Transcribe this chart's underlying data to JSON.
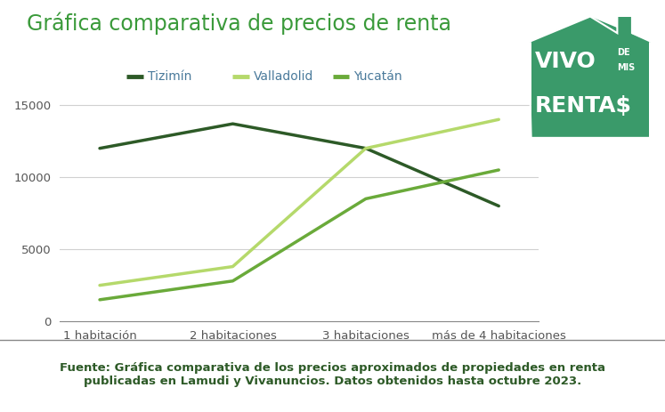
{
  "title": "Gráfica comparativa de precios de renta",
  "title_color": "#3a9a3a",
  "title_fontsize": 17,
  "categories": [
    "1 habitación",
    "2 habitaciones",
    "3 habitaciones",
    "más de 4 habitaciones"
  ],
  "series": [
    {
      "name": "Tizimín",
      "color": "#2d5a27",
      "values": [
        12000,
        13700,
        12000,
        8000
      ],
      "linewidth": 2.5
    },
    {
      "name": "Valladolid",
      "color": "#b5d96b",
      "values": [
        2500,
        3800,
        12000,
        14000
      ],
      "linewidth": 2.5
    },
    {
      "name": "Yucatán",
      "color": "#6aaa3a",
      "values": [
        1500,
        2800,
        8500,
        10500
      ],
      "linewidth": 2.5
    }
  ],
  "ylim": [
    0,
    16000
  ],
  "yticks": [
    0,
    5000,
    10000,
    15000
  ],
  "background_color": "#ffffff",
  "plot_background_color": "#ffffff",
  "grid_color": "#d0d0d0",
  "footer_text": "Fuente: Gráfica comparativa de los precios aproximados de propiedades en renta\npublicadas en Lamudi y Vivanuncios. Datos obtenidos hasta octubre 2023.",
  "footer_color": "#2d5a27",
  "footer_fontsize": 9.5,
  "legend_fontsize": 10,
  "legend_text_color": "#4a7a9b",
  "tick_fontsize": 9.5,
  "tick_color": "#555555",
  "logo_bg_color": "#3a9a6a",
  "logo_line_color": "#cccccc"
}
